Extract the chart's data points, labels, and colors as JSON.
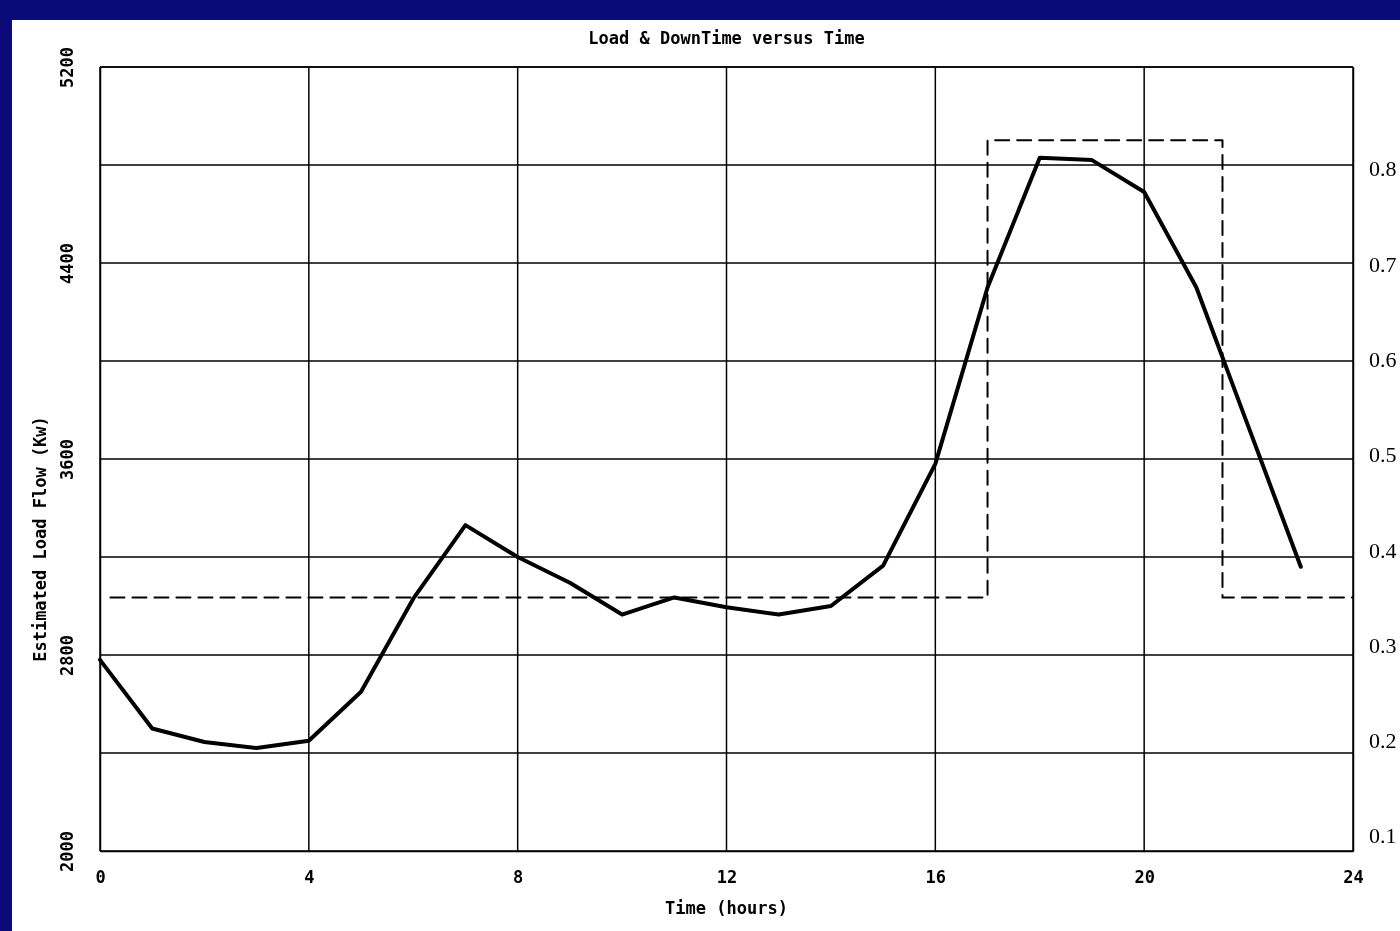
{
  "chart_data": {
    "type": "line",
    "title": "Load & DownTime versus Time",
    "xlabel": "Time (hours)",
    "ylabel": "Estimated Load Flow (Kw)",
    "xlim": [
      0,
      24
    ],
    "xticks": [
      0,
      4,
      8,
      12,
      16,
      20,
      24
    ],
    "ylim": [
      2000,
      5200
    ],
    "yticks": [
      2000,
      {
        "value": 2400,
        "label": null
      },
      2800,
      {
        "value": 3200,
        "label": null
      },
      3600,
      {
        "value": 4000,
        "label": null
      },
      4400,
      {
        "value": 4800,
        "label": null
      },
      5200
    ],
    "y2lim": [
      0.084,
      0.907
    ],
    "y2ticks": [
      0.1,
      0.2,
      0.3,
      0.4,
      0.5,
      0.6,
      0.7,
      0.8
    ],
    "grid": true,
    "marker": "none",
    "series": [
      {
        "color": "#000000",
        "line_style": "solid",
        "x": [
          0,
          1,
          2,
          3,
          4,
          5,
          6,
          7,
          8,
          9,
          10,
          11,
          12,
          13,
          14,
          15,
          16,
          17,
          18,
          19,
          20,
          21,
          22,
          23
        ],
        "values": [
          2780,
          2500,
          2445,
          2420,
          2450,
          2650,
          3030,
          3330,
          3200,
          3095,
          2965,
          3035,
          2995,
          2965,
          3000,
          3165,
          3580,
          4300,
          4830,
          4820,
          4690,
          4300,
          3730,
          3160
        ]
      },
      {
        "type": "step",
        "axis": "y2",
        "color": "#000000",
        "line_style": "dashed",
        "x": [
          0.2,
          17,
          21.5,
          24
        ],
        "values": [
          0.35,
          0.83,
          0.35,
          0.35
        ]
      }
    ]
  }
}
